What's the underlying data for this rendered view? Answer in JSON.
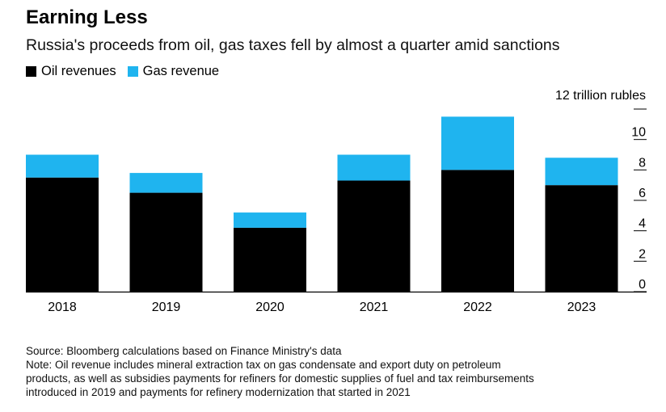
{
  "header": {
    "title": "Earning Less",
    "subtitle": "Russia's proceeds from oil, gas taxes fell by almost a quarter amid sanctions"
  },
  "legend": [
    {
      "label": "Oil revenues",
      "color": "#000000"
    },
    {
      "label": "Gas revenue",
      "color": "#1fb4ef"
    }
  ],
  "footer": {
    "source": "Source: Bloomberg calculations based on Finance Ministry's data",
    "note_lines": [
      "Note: Oil revenue includes mineral extraction tax on gas condensate and export duty on petroleum",
      "products, as well as subsidies payments for refiners for domestic supplies of fuel and tax reimbursements",
      "introduced in 2019 and payments for refinery modernization that started in 2021"
    ]
  },
  "chart_data": {
    "type": "bar",
    "stacked": true,
    "categories": [
      "2018",
      "2019",
      "2020",
      "2021",
      "2022",
      "2023"
    ],
    "series": [
      {
        "name": "Oil revenues",
        "color": "#000000",
        "values": [
          7.5,
          6.5,
          4.2,
          7.3,
          8.0,
          7.0
        ]
      },
      {
        "name": "Gas revenue",
        "color": "#1fb4ef",
        "values": [
          1.5,
          1.3,
          1.0,
          1.7,
          3.5,
          1.8
        ]
      }
    ],
    "y_unit_label": "12 trillion rubles",
    "yticks": [
      0,
      2,
      4,
      6,
      8,
      10
    ],
    "ylim": [
      0,
      12
    ],
    "axis_side": "right",
    "grid": false
  }
}
